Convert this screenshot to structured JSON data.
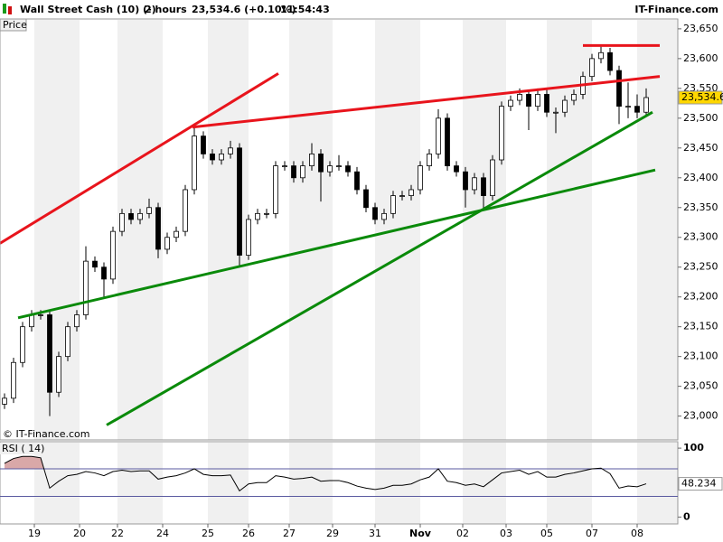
{
  "header": {
    "instrument": "Wall Street Cash (10) (-)",
    "timeframe": "2 hours",
    "quote": "23,534.6 (+0.10%)",
    "time": "11:54:43",
    "brand": "IT-Finance.com"
  },
  "chart_data": {
    "type": "candlestick",
    "price_label": "Price",
    "copyright": "© IT-Finance.com",
    "open": [
      23020,
      23030,
      23090,
      23150,
      23170,
      23170,
      23040,
      23100,
      23150,
      23170,
      23260,
      23250,
      23230,
      23310,
      23340,
      23330,
      23340,
      23350,
      23280,
      23300,
      23310,
      23380,
      23470,
      23440,
      23430,
      23440,
      23450,
      23270,
      23330,
      23340,
      23340,
      23420,
      23420,
      23400,
      23420,
      23440,
      23410,
      23420,
      23420,
      23410,
      23380,
      23350,
      23330,
      23340,
      23370,
      23370,
      23380,
      23420,
      23440,
      23500,
      23420,
      23410,
      23380,
      23400,
      23370,
      23430,
      23520,
      23530,
      23540,
      23520,
      23540,
      23510,
      23510,
      23530,
      23540,
      23570,
      23600,
      23610,
      23580,
      23520,
      23520,
      23510
    ],
    "high": [
      23038,
      23098,
      23158,
      23178,
      23178,
      23178,
      23108,
      23158,
      23178,
      23285,
      23268,
      23258,
      23318,
      23348,
      23348,
      23348,
      23365,
      23358,
      23308,
      23318,
      23388,
      23485,
      23478,
      23448,
      23448,
      23462,
      23458,
      23338,
      23348,
      23348,
      23428,
      23428,
      23428,
      23428,
      23458,
      23448,
      23428,
      23438,
      23428,
      23418,
      23388,
      23358,
      23348,
      23378,
      23378,
      23388,
      23428,
      23448,
      23515,
      23508,
      23428,
      23418,
      23408,
      23408,
      23438,
      23528,
      23538,
      23550,
      23548,
      23550,
      23548,
      23518,
      23538,
      23548,
      23578,
      23608,
      23620,
      23618,
      23588,
      23560,
      23540,
      23550
    ],
    "low": [
      23012,
      23022,
      23082,
      23142,
      23162,
      23000,
      23032,
      23092,
      23142,
      23162,
      23242,
      23200,
      23222,
      23302,
      23322,
      23322,
      23332,
      23265,
      23272,
      23292,
      23302,
      23372,
      23432,
      23422,
      23422,
      23432,
      23250,
      23262,
      23322,
      23332,
      23332,
      23412,
      23392,
      23392,
      23412,
      23360,
      23402,
      23412,
      23402,
      23372,
      23342,
      23322,
      23322,
      23332,
      23362,
      23362,
      23372,
      23412,
      23432,
      23412,
      23402,
      23350,
      23372,
      23345,
      23362,
      23422,
      23512,
      23522,
      23480,
      23512,
      23502,
      23475,
      23502,
      23522,
      23532,
      23562,
      23592,
      23572,
      23490,
      23500,
      23500,
      23502
    ],
    "close": [
      23030,
      23090,
      23150,
      23170,
      23170,
      23040,
      23100,
      23150,
      23170,
      23260,
      23250,
      23230,
      23310,
      23340,
      23330,
      23340,
      23350,
      23280,
      23300,
      23310,
      23380,
      23470,
      23440,
      23430,
      23440,
      23450,
      23270,
      23330,
      23340,
      23340,
      23420,
      23420,
      23400,
      23420,
      23440,
      23410,
      23420,
      23420,
      23410,
      23380,
      23350,
      23330,
      23340,
      23370,
      23370,
      23380,
      23420,
      23440,
      23500,
      23420,
      23410,
      23380,
      23400,
      23370,
      23430,
      23520,
      23530,
      23540,
      23520,
      23540,
      23510,
      23510,
      23530,
      23540,
      23570,
      23600,
      23610,
      23580,
      23520,
      23520,
      23510,
      23534.6
    ],
    "last_price_label": "23,534.6",
    "ylim": [
      22960,
      23665
    ],
    "yticks": [
      {
        "value": 23000,
        "label": "23,000"
      },
      {
        "value": 23050,
        "label": "23,050"
      },
      {
        "value": 23100,
        "label": "23,100"
      },
      {
        "value": 23150,
        "label": "23,150"
      },
      {
        "value": 23200,
        "label": "23,200"
      },
      {
        "value": 23250,
        "label": "23,250"
      },
      {
        "value": 23300,
        "label": "23,300"
      },
      {
        "value": 23350,
        "label": "23,350"
      },
      {
        "value": 23400,
        "label": "23,400"
      },
      {
        "value": 23450,
        "label": "23,450"
      },
      {
        "value": 23500,
        "label": "23,500"
      },
      {
        "value": 23550,
        "label": "23,550"
      },
      {
        "value": 23600,
        "label": "23,600"
      },
      {
        "value": 23650,
        "label": "23,650"
      }
    ],
    "xlim": [
      -0.5,
      74.5
    ],
    "xticks": [
      {
        "value": 3.3,
        "label": "19"
      },
      {
        "value": 8.3,
        "label": "20"
      },
      {
        "value": 12.5,
        "label": "22"
      },
      {
        "value": 17.5,
        "label": "24"
      },
      {
        "value": 22.5,
        "label": "25"
      },
      {
        "value": 27,
        "label": "26"
      },
      {
        "value": 31.5,
        "label": "27"
      },
      {
        "value": 36.3,
        "label": "29"
      },
      {
        "value": 41,
        "label": "31"
      },
      {
        "value": 46,
        "label": "Nov"
      },
      {
        "value": 50.7,
        "label": "02"
      },
      {
        "value": 55.5,
        "label": "03"
      },
      {
        "value": 60,
        "label": "05"
      },
      {
        "value": 65,
        "label": "07"
      },
      {
        "value": 70,
        "label": "08"
      }
    ],
    "up_color": "#ffffff",
    "down_color": "#000000",
    "trendlines": [
      {
        "color": "#e8141c",
        "x": [
          -0.5,
          30.3
        ],
        "y": [
          23290,
          23575
        ]
      },
      {
        "color": "#e8141c",
        "x": [
          20.8,
          72.5
        ],
        "y": [
          23485,
          23570
        ]
      },
      {
        "color": "#e8141c",
        "x": [
          64,
          72.5
        ],
        "y": [
          23622,
          23622
        ]
      },
      {
        "color": "#0a8a0a",
        "x": [
          1.5,
          72
        ],
        "y": [
          23165,
          23413
        ]
      },
      {
        "color": "#0a8a0a",
        "x": [
          11.3,
          71.7
        ],
        "y": [
          22985,
          23510
        ]
      }
    ],
    "rsi": {
      "name": "RSI ( 14)",
      "color": "#000000",
      "values": [
        78,
        85,
        88,
        88,
        86,
        42,
        52,
        60,
        62,
        66,
        64,
        60,
        66,
        68,
        66,
        67,
        67,
        55,
        58,
        60,
        64,
        70,
        62,
        60,
        60,
        61,
        38,
        48,
        50,
        50,
        60,
        58,
        55,
        56,
        58,
        52,
        53,
        53,
        50,
        45,
        42,
        40,
        42,
        46,
        46,
        48,
        54,
        58,
        70,
        52,
        50,
        46,
        48,
        44,
        54,
        64,
        66,
        68,
        62,
        66,
        58,
        58,
        62,
        64,
        67,
        70,
        71,
        63,
        42,
        45,
        44,
        48.234
      ],
      "ylim": [
        -10,
        108
      ],
      "yticks": [
        0,
        100
      ],
      "levels": [
        30,
        70
      ],
      "level_color": "#5a5aa0",
      "fill_color": "#d9a8a8"
    }
  }
}
